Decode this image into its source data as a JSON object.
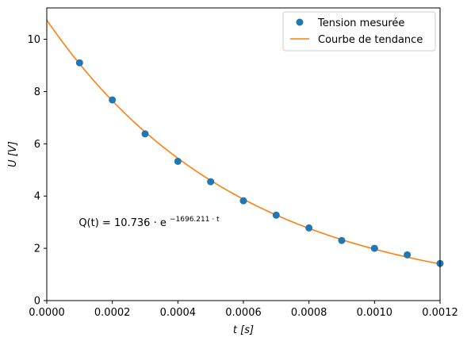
{
  "chart_data": {
    "type": "scatter",
    "title": "",
    "xlabel": "t [s]",
    "ylabel": "U [V]",
    "xlim": [
      0,
      0.0012
    ],
    "ylim": [
      0,
      11.2
    ],
    "x_ticks": [
      0,
      0.0002,
      0.0004,
      0.0006,
      0.0008,
      0.001,
      0.0012
    ],
    "x_tick_labels": [
      "0.0000",
      "0.0002",
      "0.0004",
      "0.0006",
      "0.0008",
      "0.0010",
      "0.0012"
    ],
    "y_ticks": [
      0,
      2,
      4,
      6,
      8,
      10
    ],
    "y_tick_labels": [
      "0",
      "2",
      "4",
      "6",
      "8",
      "10"
    ],
    "grid": false,
    "legend_position": "top-right",
    "series": [
      {
        "name": "Tension mesurée",
        "kind": "scatter",
        "color": "#1f77b4",
        "x": [
          0.0001,
          0.0002,
          0.0003,
          0.0004,
          0.0005,
          0.0006,
          0.0007,
          0.0008,
          0.0009,
          0.001,
          0.0011,
          0.0012
        ],
        "y": [
          9.1,
          7.68,
          6.38,
          5.33,
          4.55,
          3.82,
          3.27,
          2.78,
          2.3,
          2.0,
          1.75,
          1.42
        ]
      },
      {
        "name": "Courbe de tendance",
        "kind": "line",
        "color": "#ff7f0e",
        "model": {
          "a": 10.736,
          "b": -1696.211
        }
      }
    ],
    "annotations": [
      {
        "main": "Q(t) = 10.736 · e",
        "exponent": "−1696.211 · t",
        "x": 0.0001,
        "y": 3.0
      }
    ]
  }
}
